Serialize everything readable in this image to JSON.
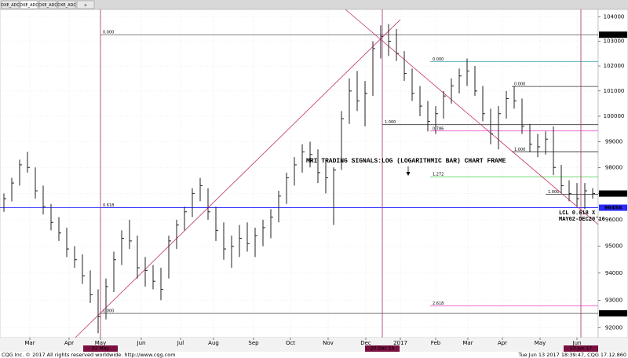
{
  "tabs": [
    "DXE_ADC",
    "DXE_ADC",
    "DXE_ADC",
    "DXE_ADC",
    "+"
  ],
  "chart_data": {
    "type": "ohlc",
    "log_scale": true,
    "bar_color": "#222222",
    "grid": true,
    "ylim": [
      91640,
      104300
    ],
    "yticks": [
      92000,
      93000,
      94000,
      95000,
      96000,
      97000,
      98000,
      99000,
      100000,
      101000,
      102000,
      103000,
      104000
    ],
    "xlim": [
      -0.5,
      75.7
    ],
    "xticks": [
      {
        "value": 3.3,
        "label": "Mar"
      },
      {
        "value": 8.3,
        "label": "Apr"
      },
      {
        "value": 12.3,
        "label": "May"
      },
      {
        "value": 17.5,
        "label": "Jun"
      },
      {
        "value": 22.5,
        "label": "Jul"
      },
      {
        "value": 26.7,
        "label": "Aug"
      },
      {
        "value": 31.8,
        "label": "Sep"
      },
      {
        "value": 36.5,
        "label": "Oct"
      },
      {
        "value": 41.3,
        "label": "Nov"
      },
      {
        "value": 46.1,
        "label": "Dec"
      },
      {
        "value": 50.5,
        "label": "2017"
      },
      {
        "value": 55,
        "label": "Feb"
      },
      {
        "value": 59.1,
        "label": "Mar"
      },
      {
        "value": 63.5,
        "label": "Apr"
      },
      {
        "value": 68.3,
        "label": "May"
      },
      {
        "value": 73,
        "label": "Jun"
      }
    ],
    "bars": [
      [
        97000,
        96300,
        96800
      ],
      [
        97600,
        96700,
        97400
      ],
      [
        98300,
        97300,
        98100
      ],
      [
        98600,
        97800,
        98000
      ],
      [
        98000,
        96800,
        97100
      ],
      [
        97300,
        96200,
        96500
      ],
      [
        96600,
        95600,
        95900
      ],
      [
        96100,
        95200,
        95500
      ],
      [
        95700,
        94600,
        94900
      ],
      [
        95000,
        94200,
        94500
      ],
      [
        94700,
        93600,
        93900
      ],
      [
        94100,
        92900,
        93200
      ],
      [
        93400,
        91800,
        92400
      ],
      [
        93800,
        92300,
        93500
      ],
      [
        94800,
        93300,
        94500
      ],
      [
        95600,
        94300,
        95300
      ],
      [
        96000,
        94900,
        95200
      ],
      [
        95400,
        93800,
        94200
      ],
      [
        94600,
        93500,
        94100
      ],
      [
        94300,
        93400,
        93700
      ],
      [
        94200,
        93000,
        93400
      ],
      [
        95400,
        93800,
        95200
      ],
      [
        96000,
        94900,
        95800
      ],
      [
        96500,
        95600,
        96300
      ],
      [
        97200,
        96100,
        97000
      ],
      [
        97600,
        96700,
        97300
      ],
      [
        97200,
        96000,
        96300
      ],
      [
        96500,
        95200,
        95600
      ],
      [
        95900,
        94500,
        94900
      ],
      [
        95400,
        94200,
        95000
      ],
      [
        95800,
        94600,
        95300
      ],
      [
        95900,
        94800,
        95100
      ],
      [
        95700,
        94600,
        95400
      ],
      [
        96000,
        95000,
        95700
      ],
      [
        96400,
        95300,
        96100
      ],
      [
        97100,
        95900,
        96900
      ],
      [
        97800,
        96600,
        97600
      ],
      [
        98400,
        97300,
        98100
      ],
      [
        98900,
        97800,
        98600
      ],
      [
        99000,
        98000,
        98500
      ],
      [
        98700,
        97400,
        97800
      ],
      [
        98300,
        97000,
        97600
      ],
      [
        98000,
        95800,
        97900
      ],
      [
        100200,
        97900,
        99900
      ],
      [
        101500,
        99700,
        101000
      ],
      [
        101800,
        100200,
        100600
      ],
      [
        101400,
        99600,
        100900
      ],
      [
        103000,
        100800,
        102700
      ],
      [
        103650,
        102300,
        103200
      ],
      [
        103700,
        102400,
        103000
      ],
      [
        103500,
        102200,
        102500
      ],
      [
        102600,
        101400,
        101700
      ],
      [
        101900,
        100600,
        100900
      ],
      [
        101200,
        100000,
        100400
      ],
      [
        100600,
        99400,
        99800
      ],
      [
        100400,
        99300,
        100100
      ],
      [
        101000,
        99900,
        100800
      ],
      [
        101500,
        100500,
        101200
      ],
      [
        101900,
        100900,
        101600
      ],
      [
        102300,
        101200,
        101800
      ],
      [
        102000,
        100800,
        101000
      ],
      [
        101200,
        99800,
        100100
      ],
      [
        100300,
        98900,
        99300
      ],
      [
        100400,
        98700,
        100100
      ],
      [
        101000,
        99900,
        100700
      ],
      [
        101200,
        100300,
        100600
      ],
      [
        100700,
        99300,
        99600
      ],
      [
        99700,
        98600,
        98900
      ],
      [
        99300,
        98400,
        98800
      ],
      [
        99400,
        98500,
        99100
      ],
      [
        99600,
        97700,
        98000
      ],
      [
        98100,
        97000,
        97300
      ],
      [
        97500,
        96700,
        97000
      ],
      [
        97400,
        96500,
        96800
      ],
      [
        97400,
        96400,
        97100
      ],
      [
        97200,
        96800,
        96995
      ]
    ],
    "price_markers": [
      103265,
      96995,
      92520
    ],
    "current_level": 96456,
    "current_level_color": "#2a2aff",
    "fib_levels": [
      {
        "value": 103265,
        "label": "0.000",
        "color": "#555555",
        "start": 12.3
      },
      {
        "value": 92520,
        "label": "1.000",
        "color": "#555555",
        "start": 12.3
      },
      {
        "value": 96456,
        "label": "0.618",
        "color": "#2a2aff",
        "start": 12.3
      },
      {
        "value": 102180,
        "label": "0.000",
        "color": "#4aa3b5",
        "start": 54.3
      },
      {
        "value": 99670,
        "label": "1.000",
        "color": "#333333",
        "start": 48.2
      },
      {
        "value": 99420,
        "label": "0.786",
        "color": "#ee44cc",
        "start": 54.3
      },
      {
        "value": 97640,
        "label": "1.272",
        "color": "#44cc44",
        "start": 54.3
      },
      {
        "value": 92790,
        "label": "2.618",
        "color": "#ee44cc",
        "start": 54.3
      },
      {
        "value": 101180,
        "label": "0.000",
        "color": "#333333",
        "start": 64.7
      },
      {
        "value": 98600,
        "label": "1.000",
        "color": "#333333",
        "start": 64.7
      },
      {
        "value": 96970,
        "label": "1.000",
        "color": "#333333",
        "start": 69.0
      }
    ],
    "date_markers": [
      {
        "value": 12.3,
        "label": "02 May"
      },
      {
        "value": 48.2,
        "label": "20 Dec 16"
      },
      {
        "value": 73.5,
        "label": "13 Jun 17"
      }
    ],
    "annotation": "MRI TRADING SIGNALS:LOG (LOGARITHMIC BAR) CHART FRAME",
    "note_lines": [
      "LCL 0.618 X",
      "MAY02-DEC20'16"
    ]
  },
  "footer": {
    "left": "CQG Inc. © 2017 All rights reserved worldwide. http://www.cqg.com",
    "right": "Tue Jun 13 2017 18:39:47, CQG 17.12.860"
  }
}
